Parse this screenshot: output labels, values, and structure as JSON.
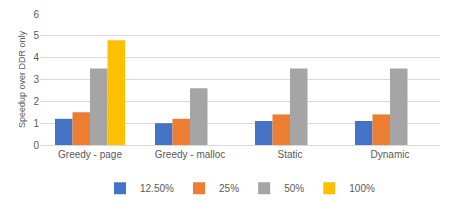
{
  "chart_data": {
    "type": "bar",
    "categories": [
      "Greedy - page",
      "Greedy - malloc",
      "Static",
      "Dynamic"
    ],
    "series": [
      {
        "name": "12.50%",
        "color": "#4472c4",
        "values": [
          1.2,
          1.0,
          1.1,
          1.1
        ]
      },
      {
        "name": "25%",
        "color": "#ed7d31",
        "values": [
          1.5,
          1.2,
          1.4,
          1.4
        ]
      },
      {
        "name": "50%",
        "color": "#a5a5a5",
        "values": [
          3.5,
          2.6,
          3.5,
          3.5
        ]
      },
      {
        "name": "100%",
        "color": "#ffc000",
        "values": [
          4.8,
          null,
          null,
          null
        ]
      }
    ],
    "y_label": "Speedup over DDR only",
    "ylim": [
      0,
      6
    ],
    "yticks": [
      0,
      1,
      2,
      3,
      4,
      5,
      6
    ],
    "grid": true,
    "legend": "bottom"
  }
}
